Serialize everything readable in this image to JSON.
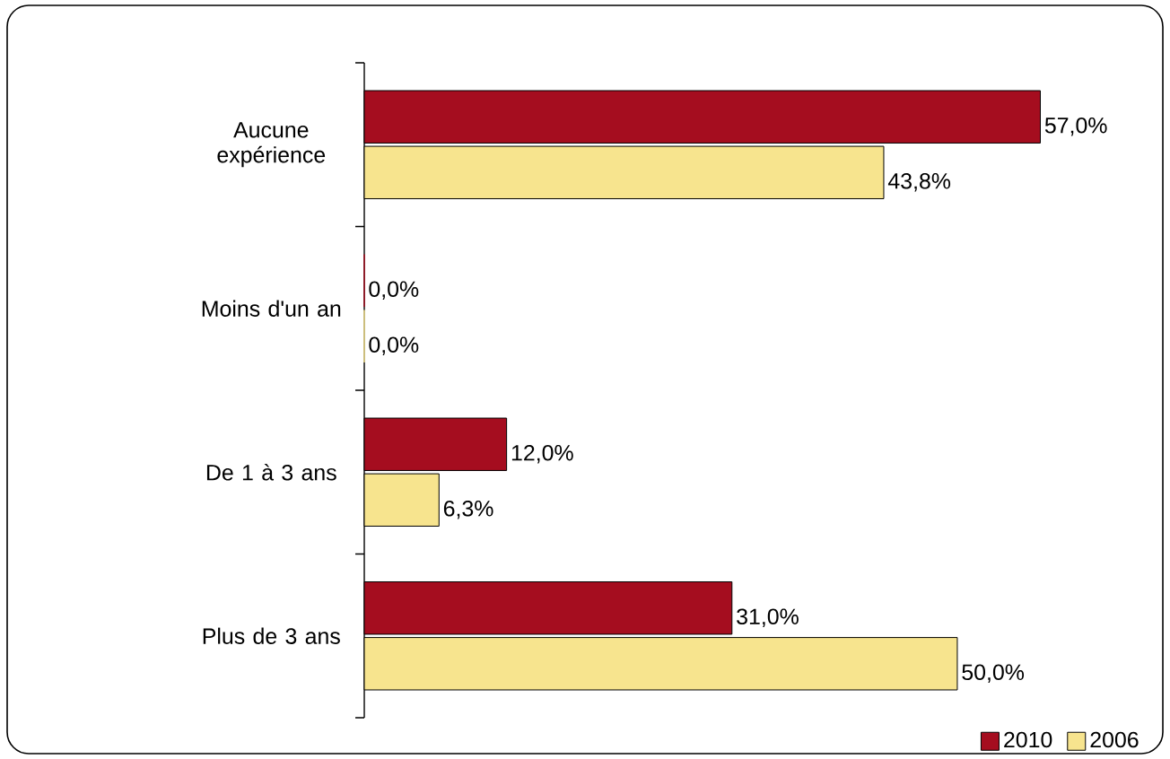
{
  "chart_data": {
    "type": "bar",
    "orientation": "horizontal",
    "categories": [
      "Aucune expérience",
      "Moins d'un an",
      "De 1 à 3 ans",
      "Plus de 3 ans"
    ],
    "series": [
      {
        "name": "2010",
        "color": "#a50d1f",
        "values": [
          57.0,
          0.0,
          12.0,
          31.0
        ],
        "value_labels": [
          "57,0%",
          "0,0%",
          "12,0%",
          "31,0%"
        ]
      },
      {
        "name": "2006",
        "color": "#f7e48e",
        "values": [
          43.8,
          0.0,
          6.3,
          50.0
        ],
        "value_labels": [
          "43,8%",
          "0,0%",
          "6,3%",
          "50,0%"
        ]
      }
    ],
    "legend": "bottom right"
  }
}
